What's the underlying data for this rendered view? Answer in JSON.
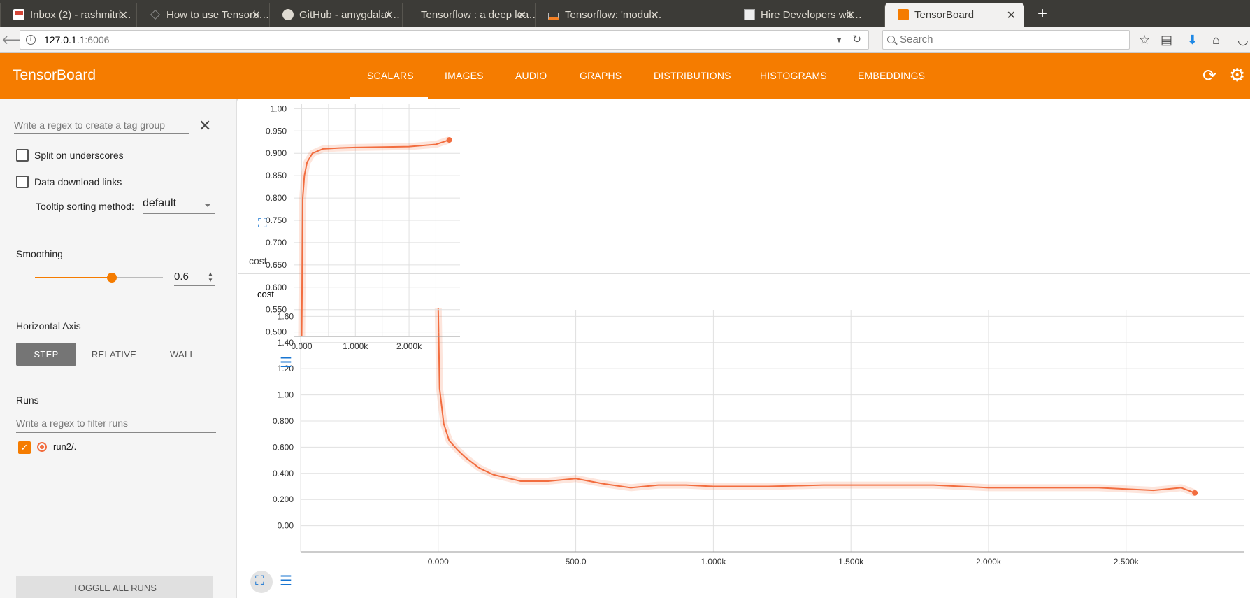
{
  "browser": {
    "tabs": [
      {
        "title": "Inbox (2) - rashmitri…",
        "icon": "gmail-icon",
        "active": false
      },
      {
        "title": "How to use Tensorb…",
        "icon": "site-icon",
        "active": false
      },
      {
        "title": "GitHub - amygdala/…",
        "icon": "github-icon",
        "active": false
      },
      {
        "title": "Tensorflow : a deep lea…",
        "icon": "page-icon",
        "active": false
      },
      {
        "title": "Tensorflow: 'modul…",
        "icon": "stackoverflow-icon",
        "active": false
      },
      {
        "title": "Hire Developers wit…",
        "icon": "page-icon",
        "active": false
      },
      {
        "title": "TensorBoard",
        "icon": "tensorboard-icon",
        "active": true
      }
    ],
    "url_host": "127.0.1.1",
    "url_port": ":6006",
    "search_placeholder": "Search"
  },
  "header": {
    "title": "TensorBoard",
    "tabs": [
      "SCALARS",
      "IMAGES",
      "AUDIO",
      "GRAPHS",
      "DISTRIBUTIONS",
      "HISTOGRAMS",
      "EMBEDDINGS"
    ],
    "active_tab": "SCALARS",
    "accent_color": "#f57c00"
  },
  "sidebar": {
    "tag_regex_placeholder": "Write a regex to create a tag group",
    "split_underscores": "Split on underscores",
    "data_download": "Data download links",
    "tooltip_label": "Tooltip sorting method:",
    "tooltip_value": "default",
    "smoothing_label": "Smoothing",
    "smoothing_value": "0.6",
    "smoothing_fraction": 0.6,
    "haxis_label": "Horizontal Axis",
    "haxis_options": [
      "STEP",
      "RELATIVE",
      "WALL"
    ],
    "haxis_selected": "STEP",
    "runs_label": "Runs",
    "runs_filter_placeholder": "Write a regex to filter runs",
    "run_name": "run2/.",
    "toggle_all": "TOGGLE ALL RUNS"
  },
  "main": {
    "category_label": "cost",
    "small_chart_title": "cost"
  },
  "chart_data": [
    {
      "type": "line",
      "title": "",
      "xlabel": "",
      "ylabel": "",
      "x_ticks": [
        "0.000",
        "1.000k",
        "2.000k"
      ],
      "y_ticks": [
        "1.00",
        "0.950",
        "0.900",
        "0.850",
        "0.800",
        "0.750",
        "0.700",
        "0.650",
        "0.600",
        "0.550",
        "0.500"
      ],
      "xlim": [
        -150,
        2950
      ],
      "ylim": [
        0.49,
        1.01
      ],
      "grid": true,
      "series": [
        {
          "color": "#f26d3f",
          "x": [
            0,
            20,
            50,
            100,
            200,
            400,
            700,
            1000,
            1500,
            2000,
            2500,
            2750
          ],
          "y": [
            0.49,
            0.8,
            0.85,
            0.88,
            0.9,
            0.91,
            0.912,
            0.913,
            0.914,
            0.915,
            0.92,
            0.93
          ]
        }
      ]
    },
    {
      "type": "line",
      "title": "",
      "xlabel": "",
      "ylabel": "",
      "x_ticks": [
        "0.000",
        "500.0",
        "1.000k",
        "1.500k",
        "2.000k",
        "2.500k"
      ],
      "y_ticks": [
        "1.60",
        "1.40",
        "1.20",
        "1.00",
        "0.800",
        "0.600",
        "0.400",
        "0.200",
        "0.00"
      ],
      "xlim": [
        -500,
        2930
      ],
      "ylim": [
        -0.2,
        1.65
      ],
      "grid": true,
      "series": [
        {
          "color": "#f26d3f",
          "x": [
            0,
            5,
            20,
            40,
            70,
            100,
            150,
            200,
            300,
            400,
            500,
            600,
            700,
            800,
            900,
            1000,
            1200,
            1400,
            1600,
            1800,
            2000,
            2200,
            2400,
            2600,
            2700,
            2750
          ],
          "y": [
            1.66,
            1.05,
            0.78,
            0.65,
            0.58,
            0.52,
            0.44,
            0.39,
            0.34,
            0.34,
            0.36,
            0.32,
            0.29,
            0.31,
            0.31,
            0.3,
            0.3,
            0.31,
            0.31,
            0.31,
            0.29,
            0.29,
            0.29,
            0.27,
            0.29,
            0.25
          ]
        }
      ]
    }
  ]
}
